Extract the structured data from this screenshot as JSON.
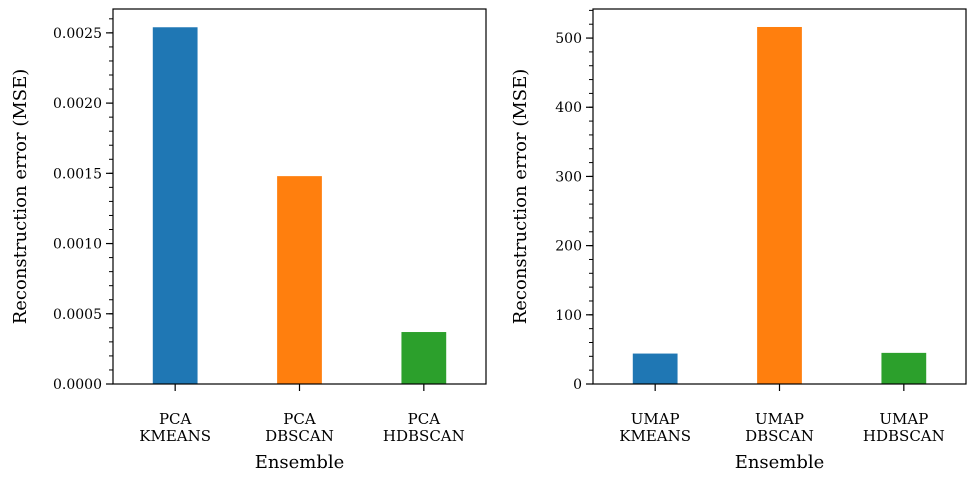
{
  "chart_data": [
    {
      "type": "bar",
      "categories": [
        [
          "PCA",
          "KMEANS"
        ],
        [
          "PCA",
          "DBSCAN"
        ],
        [
          "PCA",
          "HDBSCAN"
        ]
      ],
      "values": [
        0.00254,
        0.00148,
        0.00037
      ],
      "colors": [
        "#1f77b4",
        "#ff7f0e",
        "#2ca02c"
      ],
      "xlabel": "Ensemble",
      "ylabel": "Reconstruction error (MSE)",
      "ylim": [
        0,
        0.00267
      ],
      "yticks": [
        0,
        0.0005,
        0.001,
        0.0015,
        0.002,
        0.0025
      ],
      "ytick_labels": [
        "0.0000",
        "0.0005",
        "0.0010",
        "0.0015",
        "0.0020",
        "0.0025"
      ],
      "minor_tick_step": 0.0001,
      "grid": false,
      "legend": "none"
    },
    {
      "type": "bar",
      "categories": [
        [
          "UMAP",
          "KMEANS"
        ],
        [
          "UMAP",
          "DBSCAN"
        ],
        [
          "UMAP",
          "HDBSCAN"
        ]
      ],
      "values": [
        44,
        516,
        45
      ],
      "colors": [
        "#1f77b4",
        "#ff7f0e",
        "#2ca02c"
      ],
      "xlabel": "Ensemble",
      "ylabel": "Reconstruction error (MSE)",
      "ylim": [
        0,
        542
      ],
      "yticks": [
        0,
        100,
        200,
        300,
        400,
        500
      ],
      "ytick_labels": [
        "0",
        "100",
        "200",
        "300",
        "400",
        "500"
      ],
      "minor_tick_step": 20,
      "grid": false,
      "legend": "none"
    }
  ]
}
